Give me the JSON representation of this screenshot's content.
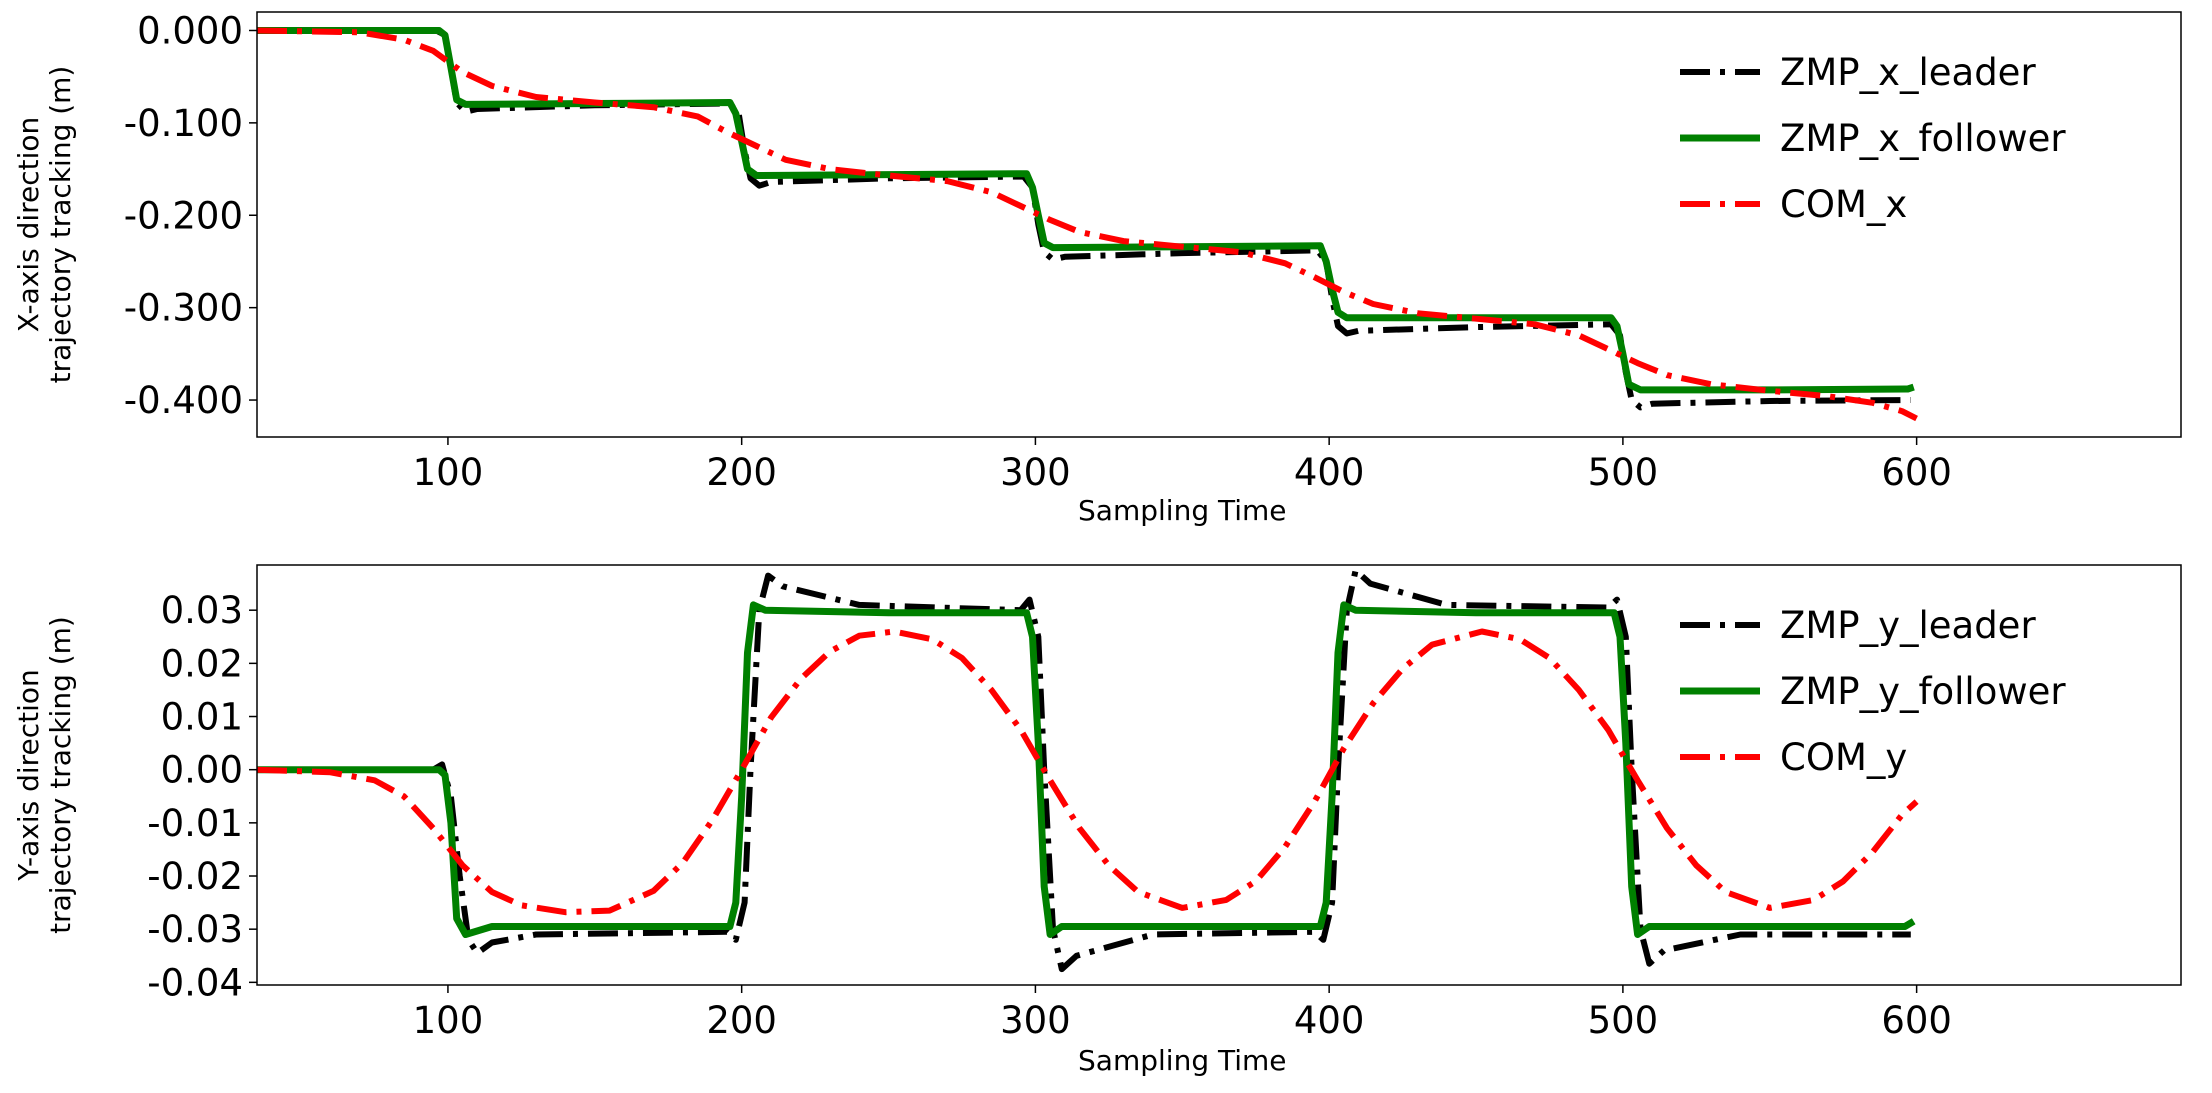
{
  "chart_data": [
    {
      "type": "line",
      "xlabel": "Sampling Time",
      "ylabel_line1": "X-axis direction",
      "ylabel_line2": "trajectory tracking (m)",
      "xlim": [
        35,
        690
      ],
      "ylim": [
        -0.44,
        0.02
      ],
      "xticks": [
        {
          "value": 100,
          "label": "100"
        },
        {
          "value": 200,
          "label": "200"
        },
        {
          "value": 300,
          "label": "300"
        },
        {
          "value": 400,
          "label": "400"
        },
        {
          "value": 500,
          "label": "500"
        },
        {
          "value": 600,
          "label": "600"
        }
      ],
      "yticks": [
        {
          "value": 0.0,
          "label": "0.000"
        },
        {
          "value": -0.1,
          "label": "-0.100"
        },
        {
          "value": -0.2,
          "label": "-0.200"
        },
        {
          "value": -0.3,
          "label": "-0.300"
        },
        {
          "value": -0.4,
          "label": "-0.400"
        }
      ],
      "legend_position": "top-right",
      "series": [
        {
          "name": "ZMP_x_leader",
          "color": "#000000",
          "style": "dashdot",
          "points": [
            [
              35,
              0.0
            ],
            [
              96,
              0.0
            ],
            [
              99,
              -0.005
            ],
            [
              101,
              -0.04
            ],
            [
              103,
              -0.078
            ],
            [
              106,
              -0.088
            ],
            [
              110,
              -0.085
            ],
            [
              150,
              -0.081
            ],
            [
              196,
              -0.079
            ],
            [
              199,
              -0.09
            ],
            [
              201,
              -0.13
            ],
            [
              203,
              -0.16
            ],
            [
              206,
              -0.168
            ],
            [
              210,
              -0.164
            ],
            [
              250,
              -0.16
            ],
            [
              296,
              -0.158
            ],
            [
              299,
              -0.17
            ],
            [
              301,
              -0.21
            ],
            [
              303,
              -0.24
            ],
            [
              306,
              -0.248
            ],
            [
              310,
              -0.245
            ],
            [
              350,
              -0.241
            ],
            [
              396,
              -0.238
            ],
            [
              399,
              -0.25
            ],
            [
              401,
              -0.29
            ],
            [
              403,
              -0.32
            ],
            [
              406,
              -0.328
            ],
            [
              410,
              -0.325
            ],
            [
              450,
              -0.321
            ],
            [
              496,
              -0.318
            ],
            [
              499,
              -0.33
            ],
            [
              501,
              -0.37
            ],
            [
              503,
              -0.4
            ],
            [
              506,
              -0.408
            ],
            [
              510,
              -0.404
            ],
            [
              550,
              -0.401
            ],
            [
              598,
              -0.4
            ]
          ]
        },
        {
          "name": "ZMP_x_follower",
          "color": "#008000",
          "style": "solid",
          "points": [
            [
              35,
              0.0
            ],
            [
              97,
              0.0
            ],
            [
              99,
              -0.005
            ],
            [
              101,
              -0.04
            ],
            [
              103,
              -0.075
            ],
            [
              106,
              -0.08
            ],
            [
              150,
              -0.079
            ],
            [
              196,
              -0.078
            ],
            [
              198,
              -0.09
            ],
            [
              200,
              -0.12
            ],
            [
              202,
              -0.15
            ],
            [
              205,
              -0.157
            ],
            [
              250,
              -0.156
            ],
            [
              297,
              -0.155
            ],
            [
              299,
              -0.17
            ],
            [
              301,
              -0.2
            ],
            [
              303,
              -0.23
            ],
            [
              306,
              -0.235
            ],
            [
              350,
              -0.234
            ],
            [
              397,
              -0.233
            ],
            [
              399,
              -0.25
            ],
            [
              401,
              -0.28
            ],
            [
              403,
              -0.305
            ],
            [
              406,
              -0.311
            ],
            [
              450,
              -0.311
            ],
            [
              496,
              -0.311
            ],
            [
              498,
              -0.32
            ],
            [
              500,
              -0.35
            ],
            [
              502,
              -0.383
            ],
            [
              506,
              -0.389
            ],
            [
              550,
              -0.389
            ],
            [
              597,
              -0.388
            ],
            [
              599,
              -0.386
            ]
          ]
        },
        {
          "name": "COM_x",
          "color": "#ff0000",
          "style": "dashdot",
          "points": [
            [
              35,
              0.0
            ],
            [
              70,
              -0.002
            ],
            [
              85,
              -0.01
            ],
            [
              95,
              -0.022
            ],
            [
              105,
              -0.045
            ],
            [
              115,
              -0.06
            ],
            [
              130,
              -0.072
            ],
            [
              150,
              -0.078
            ],
            [
              170,
              -0.083
            ],
            [
              185,
              -0.093
            ],
            [
              195,
              -0.11
            ],
            [
              205,
              -0.125
            ],
            [
              215,
              -0.14
            ],
            [
              230,
              -0.15
            ],
            [
              250,
              -0.157
            ],
            [
              270,
              -0.163
            ],
            [
              285,
              -0.175
            ],
            [
              295,
              -0.19
            ],
            [
              305,
              -0.205
            ],
            [
              315,
              -0.218
            ],
            [
              330,
              -0.228
            ],
            [
              350,
              -0.234
            ],
            [
              370,
              -0.24
            ],
            [
              385,
              -0.252
            ],
            [
              395,
              -0.267
            ],
            [
              405,
              -0.283
            ],
            [
              415,
              -0.296
            ],
            [
              430,
              -0.306
            ],
            [
              450,
              -0.312
            ],
            [
              470,
              -0.318
            ],
            [
              485,
              -0.33
            ],
            [
              495,
              -0.345
            ],
            [
              505,
              -0.36
            ],
            [
              515,
              -0.373
            ],
            [
              530,
              -0.383
            ],
            [
              550,
              -0.39
            ],
            [
              570,
              -0.396
            ],
            [
              585,
              -0.403
            ],
            [
              595,
              -0.412
            ],
            [
              600,
              -0.42
            ]
          ]
        }
      ]
    },
    {
      "type": "line",
      "xlabel": "Sampling Time",
      "ylabel_line1": "Y-axis direction",
      "ylabel_line2": "trajectory tracking (m)",
      "xlim": [
        35,
        690
      ],
      "ylim": [
        -0.0405,
        0.0385
      ],
      "xticks": [
        {
          "value": 100,
          "label": "100"
        },
        {
          "value": 200,
          "label": "200"
        },
        {
          "value": 300,
          "label": "300"
        },
        {
          "value": 400,
          "label": "400"
        },
        {
          "value": 500,
          "label": "500"
        },
        {
          "value": 600,
          "label": "600"
        }
      ],
      "yticks": [
        {
          "value": 0.03,
          "label": "0.03"
        },
        {
          "value": 0.02,
          "label": "0.02"
        },
        {
          "value": 0.01,
          "label": "0.01"
        },
        {
          "value": 0.0,
          "label": "0.00"
        },
        {
          "value": -0.01,
          "label": "-0.01"
        },
        {
          "value": -0.02,
          "label": "-0.02"
        },
        {
          "value": -0.03,
          "label": "-0.03"
        },
        {
          "value": -0.04,
          "label": "-0.04"
        }
      ],
      "legend_position": "top-right",
      "series": [
        {
          "name": "ZMP_y_leader",
          "color": "#000000",
          "style": "dashdot",
          "points": [
            [
              35,
              0.0
            ],
            [
              95,
              0.0
            ],
            [
              98,
              0.001
            ],
            [
              101,
              -0.005
            ],
            [
              104,
              -0.02
            ],
            [
              107,
              -0.032
            ],
            [
              110,
              -0.0345
            ],
            [
              115,
              -0.0325
            ],
            [
              130,
              -0.031
            ],
            [
              195,
              -0.0305
            ],
            [
              198,
              -0.032
            ],
            [
              201,
              -0.025
            ],
            [
              203,
              0.0
            ],
            [
              206,
              0.03
            ],
            [
              209,
              0.0365
            ],
            [
              214,
              0.0345
            ],
            [
              240,
              0.031
            ],
            [
              295,
              0.03
            ],
            [
              298,
              0.032
            ],
            [
              301,
              0.025
            ],
            [
              303,
              0.0
            ],
            [
              306,
              -0.03
            ],
            [
              309,
              -0.0375
            ],
            [
              314,
              -0.035
            ],
            [
              340,
              -0.031
            ],
            [
              395,
              -0.0305
            ],
            [
              398,
              -0.032
            ],
            [
              401,
              -0.025
            ],
            [
              403,
              0.0
            ],
            [
              406,
              0.03
            ],
            [
              409,
              0.0375
            ],
            [
              414,
              0.035
            ],
            [
              440,
              0.031
            ],
            [
              495,
              0.0305
            ],
            [
              498,
              0.032
            ],
            [
              501,
              0.025
            ],
            [
              503,
              0.0
            ],
            [
              506,
              -0.03
            ],
            [
              509,
              -0.0365
            ],
            [
              514,
              -0.034
            ],
            [
              540,
              -0.031
            ],
            [
              598,
              -0.031
            ]
          ]
        },
        {
          "name": "ZMP_y_follower",
          "color": "#008000",
          "style": "solid",
          "points": [
            [
              35,
              0.0
            ],
            [
              97,
              0.0
            ],
            [
              99,
              -0.001
            ],
            [
              101,
              -0.01
            ],
            [
              103,
              -0.028
            ],
            [
              106,
              -0.031
            ],
            [
              115,
              -0.0295
            ],
            [
              150,
              -0.0295
            ],
            [
              196,
              -0.0295
            ],
            [
              198,
              -0.025
            ],
            [
              200,
              -0.005
            ],
            [
              202,
              0.022
            ],
            [
              204,
              0.031
            ],
            [
              208,
              0.03
            ],
            [
              250,
              0.0295
            ],
            [
              297,
              0.0295
            ],
            [
              299,
              0.025
            ],
            [
              301,
              0.005
            ],
            [
              303,
              -0.022
            ],
            [
              305,
              -0.031
            ],
            [
              309,
              -0.0295
            ],
            [
              350,
              -0.0295
            ],
            [
              397,
              -0.0295
            ],
            [
              399,
              -0.025
            ],
            [
              401,
              -0.005
            ],
            [
              403,
              0.022
            ],
            [
              405,
              0.031
            ],
            [
              409,
              0.03
            ],
            [
              450,
              0.0295
            ],
            [
              497,
              0.0295
            ],
            [
              499,
              0.025
            ],
            [
              501,
              0.005
            ],
            [
              503,
              -0.022
            ],
            [
              505,
              -0.031
            ],
            [
              509,
              -0.0295
            ],
            [
              550,
              -0.0295
            ],
            [
              596,
              -0.0295
            ],
            [
              599,
              -0.0285
            ]
          ]
        },
        {
          "name": "COM_y",
          "color": "#ff0000",
          "style": "dashdot",
          "points": [
            [
              35,
              0.0
            ],
            [
              60,
              -0.0005
            ],
            [
              75,
              -0.002
            ],
            [
              85,
              -0.005
            ],
            [
              95,
              -0.011
            ],
            [
              105,
              -0.018
            ],
            [
              115,
              -0.023
            ],
            [
              125,
              -0.0255
            ],
            [
              140,
              -0.0268
            ],
            [
              155,
              -0.0265
            ],
            [
              170,
              -0.0228
            ],
            [
              180,
              -0.0175
            ],
            [
              190,
              -0.0095
            ],
            [
              200,
              0.0
            ],
            [
              210,
              0.0098
            ],
            [
              220,
              0.017
            ],
            [
              230,
              0.0222
            ],
            [
              240,
              0.0252
            ],
            [
              252,
              0.026
            ],
            [
              265,
              0.0245
            ],
            [
              275,
              0.021
            ],
            [
              285,
              0.015
            ],
            [
              295,
              0.0075
            ],
            [
              305,
              -0.002
            ],
            [
              315,
              -0.011
            ],
            [
              325,
              -0.018
            ],
            [
              335,
              -0.023
            ],
            [
              350,
              -0.026
            ],
            [
              365,
              -0.0245
            ],
            [
              375,
              -0.021
            ],
            [
              385,
              -0.0145
            ],
            [
              395,
              -0.006
            ],
            [
              405,
              0.004
            ],
            [
              415,
              0.0125
            ],
            [
              425,
              0.019
            ],
            [
              435,
              0.0235
            ],
            [
              452,
              0.026
            ],
            [
              465,
              0.0245
            ],
            [
              475,
              0.021
            ],
            [
              485,
              0.015
            ],
            [
              495,
              0.0075
            ],
            [
              505,
              -0.002
            ],
            [
              515,
              -0.011
            ],
            [
              525,
              -0.018
            ],
            [
              535,
              -0.023
            ],
            [
              550,
              -0.026
            ],
            [
              565,
              -0.0245
            ],
            [
              575,
              -0.021
            ],
            [
              585,
              -0.0155
            ],
            [
              595,
              -0.0085
            ],
            [
              600,
              -0.006
            ]
          ]
        }
      ]
    }
  ]
}
